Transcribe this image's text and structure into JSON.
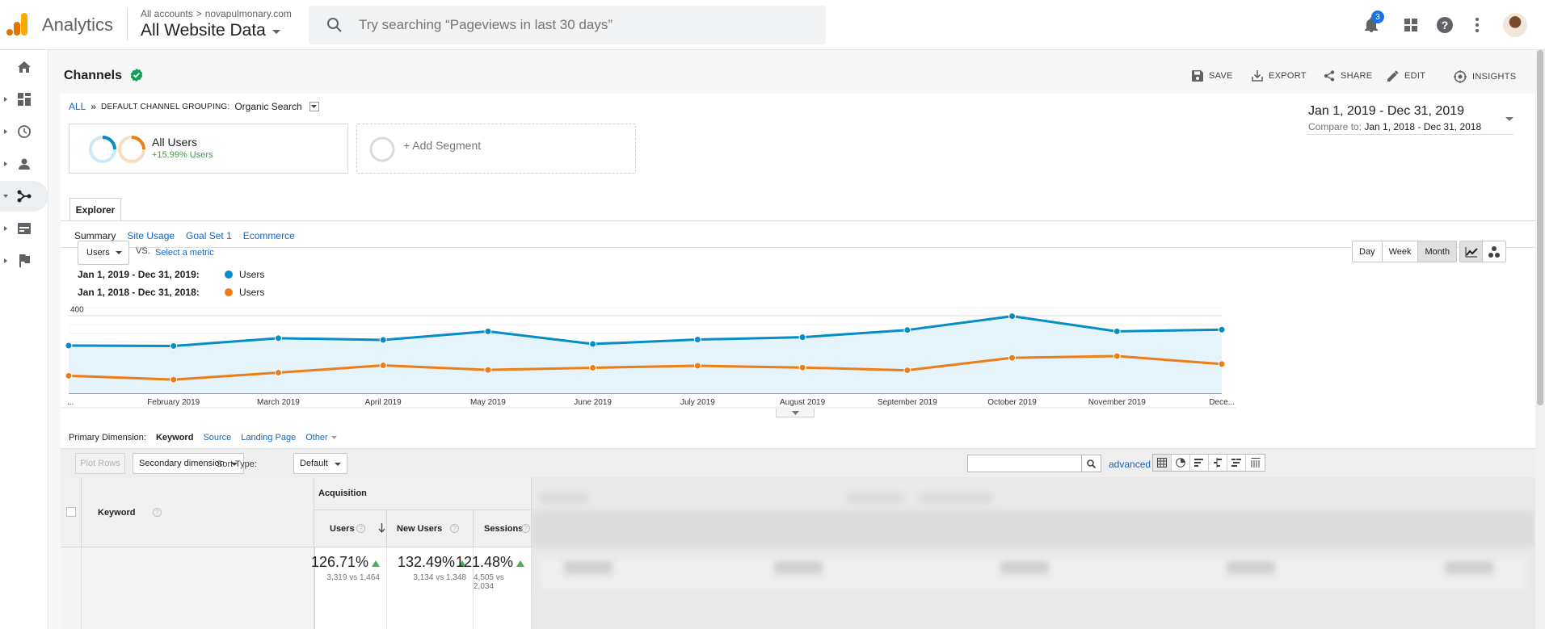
{
  "header": {
    "app_name": "Analytics",
    "breadcrumb_all": "All accounts",
    "breadcrumb_sep": ">",
    "breadcrumb_property": "novapulmonary.com",
    "view_name": "All Website Data",
    "search_placeholder": "Try searching “Pageviews in last 30 days”",
    "notification_count": "3"
  },
  "page": {
    "title": "Channels",
    "actions": {
      "save": "SAVE",
      "export": "EXPORT",
      "share": "SHARE",
      "edit": "EDIT",
      "insights": "INSIGHTS"
    }
  },
  "breadcrumb": {
    "all": "ALL",
    "sep": "»",
    "grouping": "DEFAULT CHANNEL GROUPING:",
    "grouping_value": "Organic Search"
  },
  "segments": {
    "all_users": {
      "label": "All Users",
      "sub": "+15.99% Users"
    },
    "add": "+ Add Segment"
  },
  "date_range": {
    "primary": "Jan 1, 2019 - Dec 31, 2019",
    "compare_label": "Compare to:",
    "compare": "Jan 1, 2018 - Dec 31, 2018"
  },
  "tabs": {
    "explorer": "Explorer",
    "subtabs": [
      "Summary",
      "Site Usage",
      "Goal Set 1",
      "Ecommerce"
    ]
  },
  "metric": {
    "selected": "Users",
    "vs": "VS.",
    "select_metric": "Select a metric"
  },
  "granularity": [
    "Day",
    "Week",
    "Month"
  ],
  "legend": [
    {
      "range": "Jan 1, 2019 - Dec 31, 2019:",
      "label": "Users",
      "color": "#058dc7"
    },
    {
      "range": "Jan 1, 2018 - Dec 31, 2018:",
      "label": "Users",
      "color": "#ed7e17"
    }
  ],
  "chart_data": {
    "type": "line",
    "categories": [
      "...",
      "February 2019",
      "March 2019",
      "April 2019",
      "May 2019",
      "June 2019",
      "July 2019",
      "August 2019",
      "September 2019",
      "October 2019",
      "November 2019",
      "Dece..."
    ],
    "yticks": [
      200,
      400
    ],
    "ylim": [
      0,
      440
    ],
    "series": [
      {
        "name": "Users",
        "color": "#058dc7",
        "values": [
          245,
          243,
          283,
          274,
          318,
          253,
          276,
          288,
          325,
          396,
          318,
          327
        ]
      },
      {
        "name": "Users",
        "color": "#ed7e17",
        "values": [
          90,
          70,
          106,
          143,
          120,
          131,
          141,
          132,
          118,
          182,
          191,
          150
        ]
      }
    ]
  },
  "primary_dimension": {
    "label": "Primary Dimension:",
    "active": "Keyword",
    "links": [
      "Source",
      "Landing Page"
    ],
    "other": "Other"
  },
  "toolbar": {
    "plot_rows": "Plot Rows",
    "secondary": "Secondary dimension",
    "sort_label": "Sort Type:",
    "sort_value": "Default",
    "advanced": "advanced"
  },
  "table": {
    "dimension_header": "Keyword",
    "group_header": "Acquisition",
    "columns": [
      {
        "label": "Users",
        "pct": "126.71%",
        "vs": "3,319 vs 1,464"
      },
      {
        "label": "New Users",
        "pct": "132.49%",
        "vs": "3,134 vs 1,348"
      },
      {
        "label": "Sessions",
        "pct": "121.48%",
        "vs": "4,505 vs 2,034"
      }
    ]
  }
}
